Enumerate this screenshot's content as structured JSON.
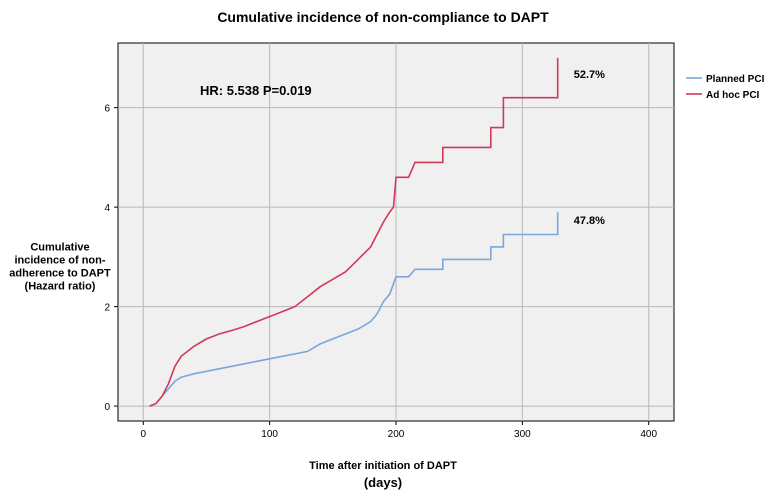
{
  "chart_data": {
    "type": "line",
    "title": "Cumulative incidence of non-compliance to DAPT",
    "xlabel": "Time after initiation of DAPT",
    "xlabel_line2": "(days)",
    "ylabel_lines": [
      "Cumulative",
      "incidence of non-",
      "adherence to DAPT",
      "(Hazard ratio)"
    ],
    "xlim": [
      -20,
      420
    ],
    "ylim": [
      -0.3,
      7.3
    ],
    "xticks": [
      0,
      100,
      200,
      300,
      400
    ],
    "yticks": [
      0,
      2,
      4,
      6
    ],
    "grid": true,
    "legend_position": "top-right",
    "annotation": "HR: 5.538 P=0.019",
    "series": [
      {
        "name": "Planned PCI",
        "color": "#7aa6da",
        "end_label": "47.8%",
        "points": [
          [
            5,
            0
          ],
          [
            10,
            0.05
          ],
          [
            15,
            0.2
          ],
          [
            20,
            0.35
          ],
          [
            25,
            0.5
          ],
          [
            30,
            0.58
          ],
          [
            40,
            0.65
          ],
          [
            50,
            0.7
          ],
          [
            60,
            0.75
          ],
          [
            70,
            0.8
          ],
          [
            80,
            0.85
          ],
          [
            90,
            0.9
          ],
          [
            100,
            0.95
          ],
          [
            110,
            1.0
          ],
          [
            120,
            1.05
          ],
          [
            130,
            1.1
          ],
          [
            140,
            1.25
          ],
          [
            150,
            1.35
          ],
          [
            160,
            1.45
          ],
          [
            170,
            1.55
          ],
          [
            180,
            1.7
          ],
          [
            185,
            1.85
          ],
          [
            190,
            2.1
          ],
          [
            195,
            2.25
          ],
          [
            200,
            2.6
          ],
          [
            210,
            2.6
          ],
          [
            215,
            2.75
          ],
          [
            237,
            2.75
          ],
          [
            237,
            2.95
          ],
          [
            275,
            2.95
          ],
          [
            275,
            3.2
          ],
          [
            285,
            3.2
          ],
          [
            285,
            3.45
          ],
          [
            328,
            3.45
          ],
          [
            328,
            3.9
          ]
        ]
      },
      {
        "name": "Ad hoc PCI",
        "color": "#d03a5a",
        "end_label": "52.7%",
        "points": [
          [
            5,
            0
          ],
          [
            10,
            0.05
          ],
          [
            15,
            0.2
          ],
          [
            20,
            0.45
          ],
          [
            25,
            0.8
          ],
          [
            30,
            1.0
          ],
          [
            40,
            1.2
          ],
          [
            50,
            1.35
          ],
          [
            60,
            1.45
          ],
          [
            70,
            1.52
          ],
          [
            80,
            1.6
          ],
          [
            90,
            1.7
          ],
          [
            100,
            1.8
          ],
          [
            110,
            1.9
          ],
          [
            120,
            2.0
          ],
          [
            130,
            2.2
          ],
          [
            140,
            2.4
          ],
          [
            150,
            2.55
          ],
          [
            160,
            2.7
          ],
          [
            170,
            2.95
          ],
          [
            180,
            3.2
          ],
          [
            185,
            3.45
          ],
          [
            190,
            3.7
          ],
          [
            195,
            3.9
          ],
          [
            198,
            4.0
          ],
          [
            200,
            4.6
          ],
          [
            210,
            4.6
          ],
          [
            215,
            4.9
          ],
          [
            237,
            4.9
          ],
          [
            237,
            5.2
          ],
          [
            275,
            5.2
          ],
          [
            275,
            5.6
          ],
          [
            285,
            5.6
          ],
          [
            285,
            6.2
          ],
          [
            328,
            6.2
          ],
          [
            328,
            7.0
          ]
        ]
      }
    ]
  }
}
